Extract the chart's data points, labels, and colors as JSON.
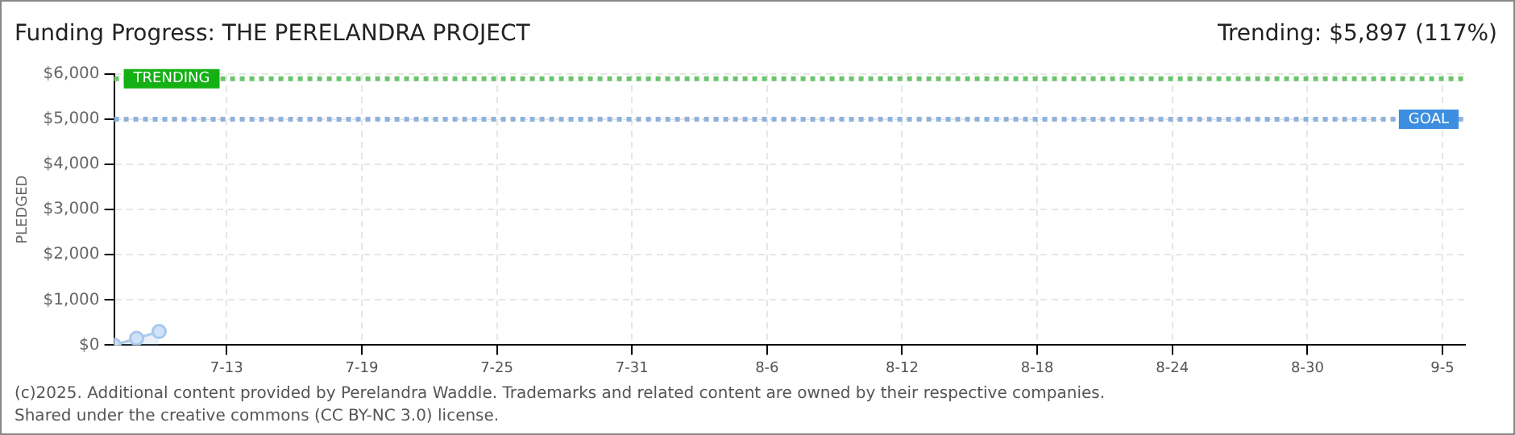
{
  "chart_data": {
    "type": "area",
    "title": "Funding Progress: THE PERELANDRA PROJECT",
    "subtitle": "Trending: $5,897 (117%)",
    "ylabel": "PLEDGED",
    "x": [
      "2025-07-08",
      "2025-07-09",
      "2025-07-10"
    ],
    "series": [
      {
        "color": "#a8c8ec",
        "values": [
          0,
          150,
          300
        ]
      }
    ],
    "xlim": [
      "2025-07-08",
      "2025-09-06"
    ],
    "xticks": [
      {
        "value": "2025-07-13",
        "label": "7-13"
      },
      {
        "value": "2025-07-19",
        "label": "7-19"
      },
      {
        "value": "2025-07-25",
        "label": "7-25"
      },
      {
        "value": "2025-07-31",
        "label": "7-31"
      },
      {
        "value": "2025-08-06",
        "label": "8-6"
      },
      {
        "value": "2025-08-12",
        "label": "8-12"
      },
      {
        "value": "2025-08-18",
        "label": "8-18"
      },
      {
        "value": "2025-08-24",
        "label": "8-24"
      },
      {
        "value": "2025-08-30",
        "label": "8-30"
      },
      {
        "value": "2025-09-05",
        "label": "9-5"
      }
    ],
    "ylim": [
      0,
      6000
    ],
    "yticks": [
      {
        "value": 0,
        "label": "$0"
      },
      {
        "value": 1000,
        "label": "$1,000"
      },
      {
        "value": 2000,
        "label": "$2,000"
      },
      {
        "value": 3000,
        "label": "$3,000"
      },
      {
        "value": 4000,
        "label": "$4,000"
      },
      {
        "value": 5000,
        "label": "$5,000"
      },
      {
        "value": 6000,
        "label": "$6,000"
      }
    ],
    "ref_lines": [
      {
        "axis": "y",
        "value": 5897,
        "label": "TRENDING",
        "color": "#6cc46c",
        "line_style": "dotted"
      },
      {
        "axis": "y",
        "value": 5000,
        "label": "GOAL",
        "color": "#8fb2dc",
        "line_style": "dotted"
      }
    ],
    "grid": true,
    "legend": false,
    "marker": "circle",
    "annotations": [
      "(c)2025. Additional content provided by Perelandra Waddle. Trademarks and related content are owned by their respective companies.",
      "Shared under the creative commons (CC BY-NC 3.0) license."
    ]
  }
}
